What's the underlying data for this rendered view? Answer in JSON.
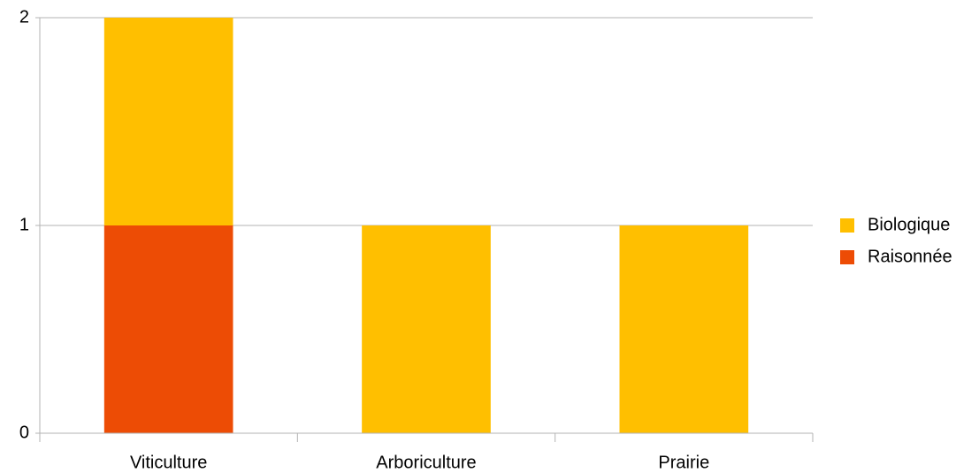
{
  "chart_data": {
    "type": "stacked_bar",
    "categories": [
      "Viticulture",
      "Arboriculture",
      "Prairie"
    ],
    "series": [
      {
        "name": "Raisonnée",
        "color": "#ed4c05",
        "values": [
          1,
          0,
          0
        ]
      },
      {
        "name": "Biologique",
        "color": "#ffbf00",
        "values": [
          1,
          1,
          1
        ]
      }
    ],
    "ylim": [
      0,
      2
    ],
    "yticks": [
      0,
      1,
      2
    ],
    "grid": true,
    "legend": "right"
  }
}
